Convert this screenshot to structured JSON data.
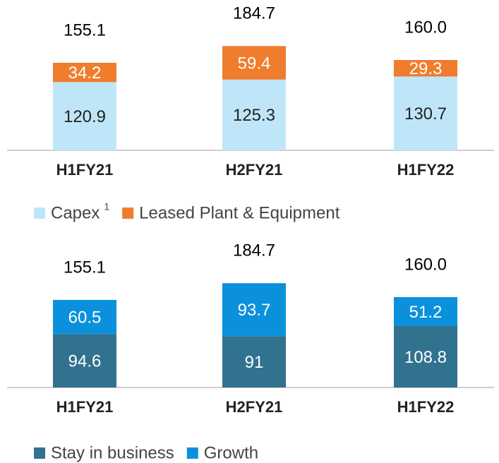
{
  "chart_data": [
    {
      "type": "stacked_bar",
      "categories": [
        "H1FY21",
        "H2FY21",
        "H1FY22"
      ],
      "series": [
        {
          "name": "Capex",
          "footnote": "1",
          "color": "#bfe6f8",
          "label_color": "#222222",
          "values": [
            120.9,
            125.3,
            130.7
          ]
        },
        {
          "name": "Leased Plant & Equipment",
          "color": "#ef7d2d",
          "label_color": "#ffffff",
          "values": [
            34.2,
            59.4,
            29.3
          ]
        }
      ],
      "totals": [
        155.1,
        184.7,
        160.0
      ],
      "total_labels": [
        "155.1",
        "184.7",
        "160.0"
      ]
    },
    {
      "type": "stacked_bar",
      "categories": [
        "H1FY21",
        "H2FY21",
        "H1FY22"
      ],
      "series": [
        {
          "name": "Stay in business",
          "color": "#31728f",
          "label_color": "#ffffff",
          "values": [
            94.6,
            91,
            108.8
          ]
        },
        {
          "name": "Growth",
          "color": "#0b91dc",
          "label_color": "#ffffff",
          "values": [
            60.5,
            93.7,
            51.2
          ]
        }
      ],
      "totals": [
        155.1,
        184.7,
        160.0
      ],
      "total_labels": [
        "155.1",
        "184.7",
        "160.0"
      ]
    }
  ]
}
